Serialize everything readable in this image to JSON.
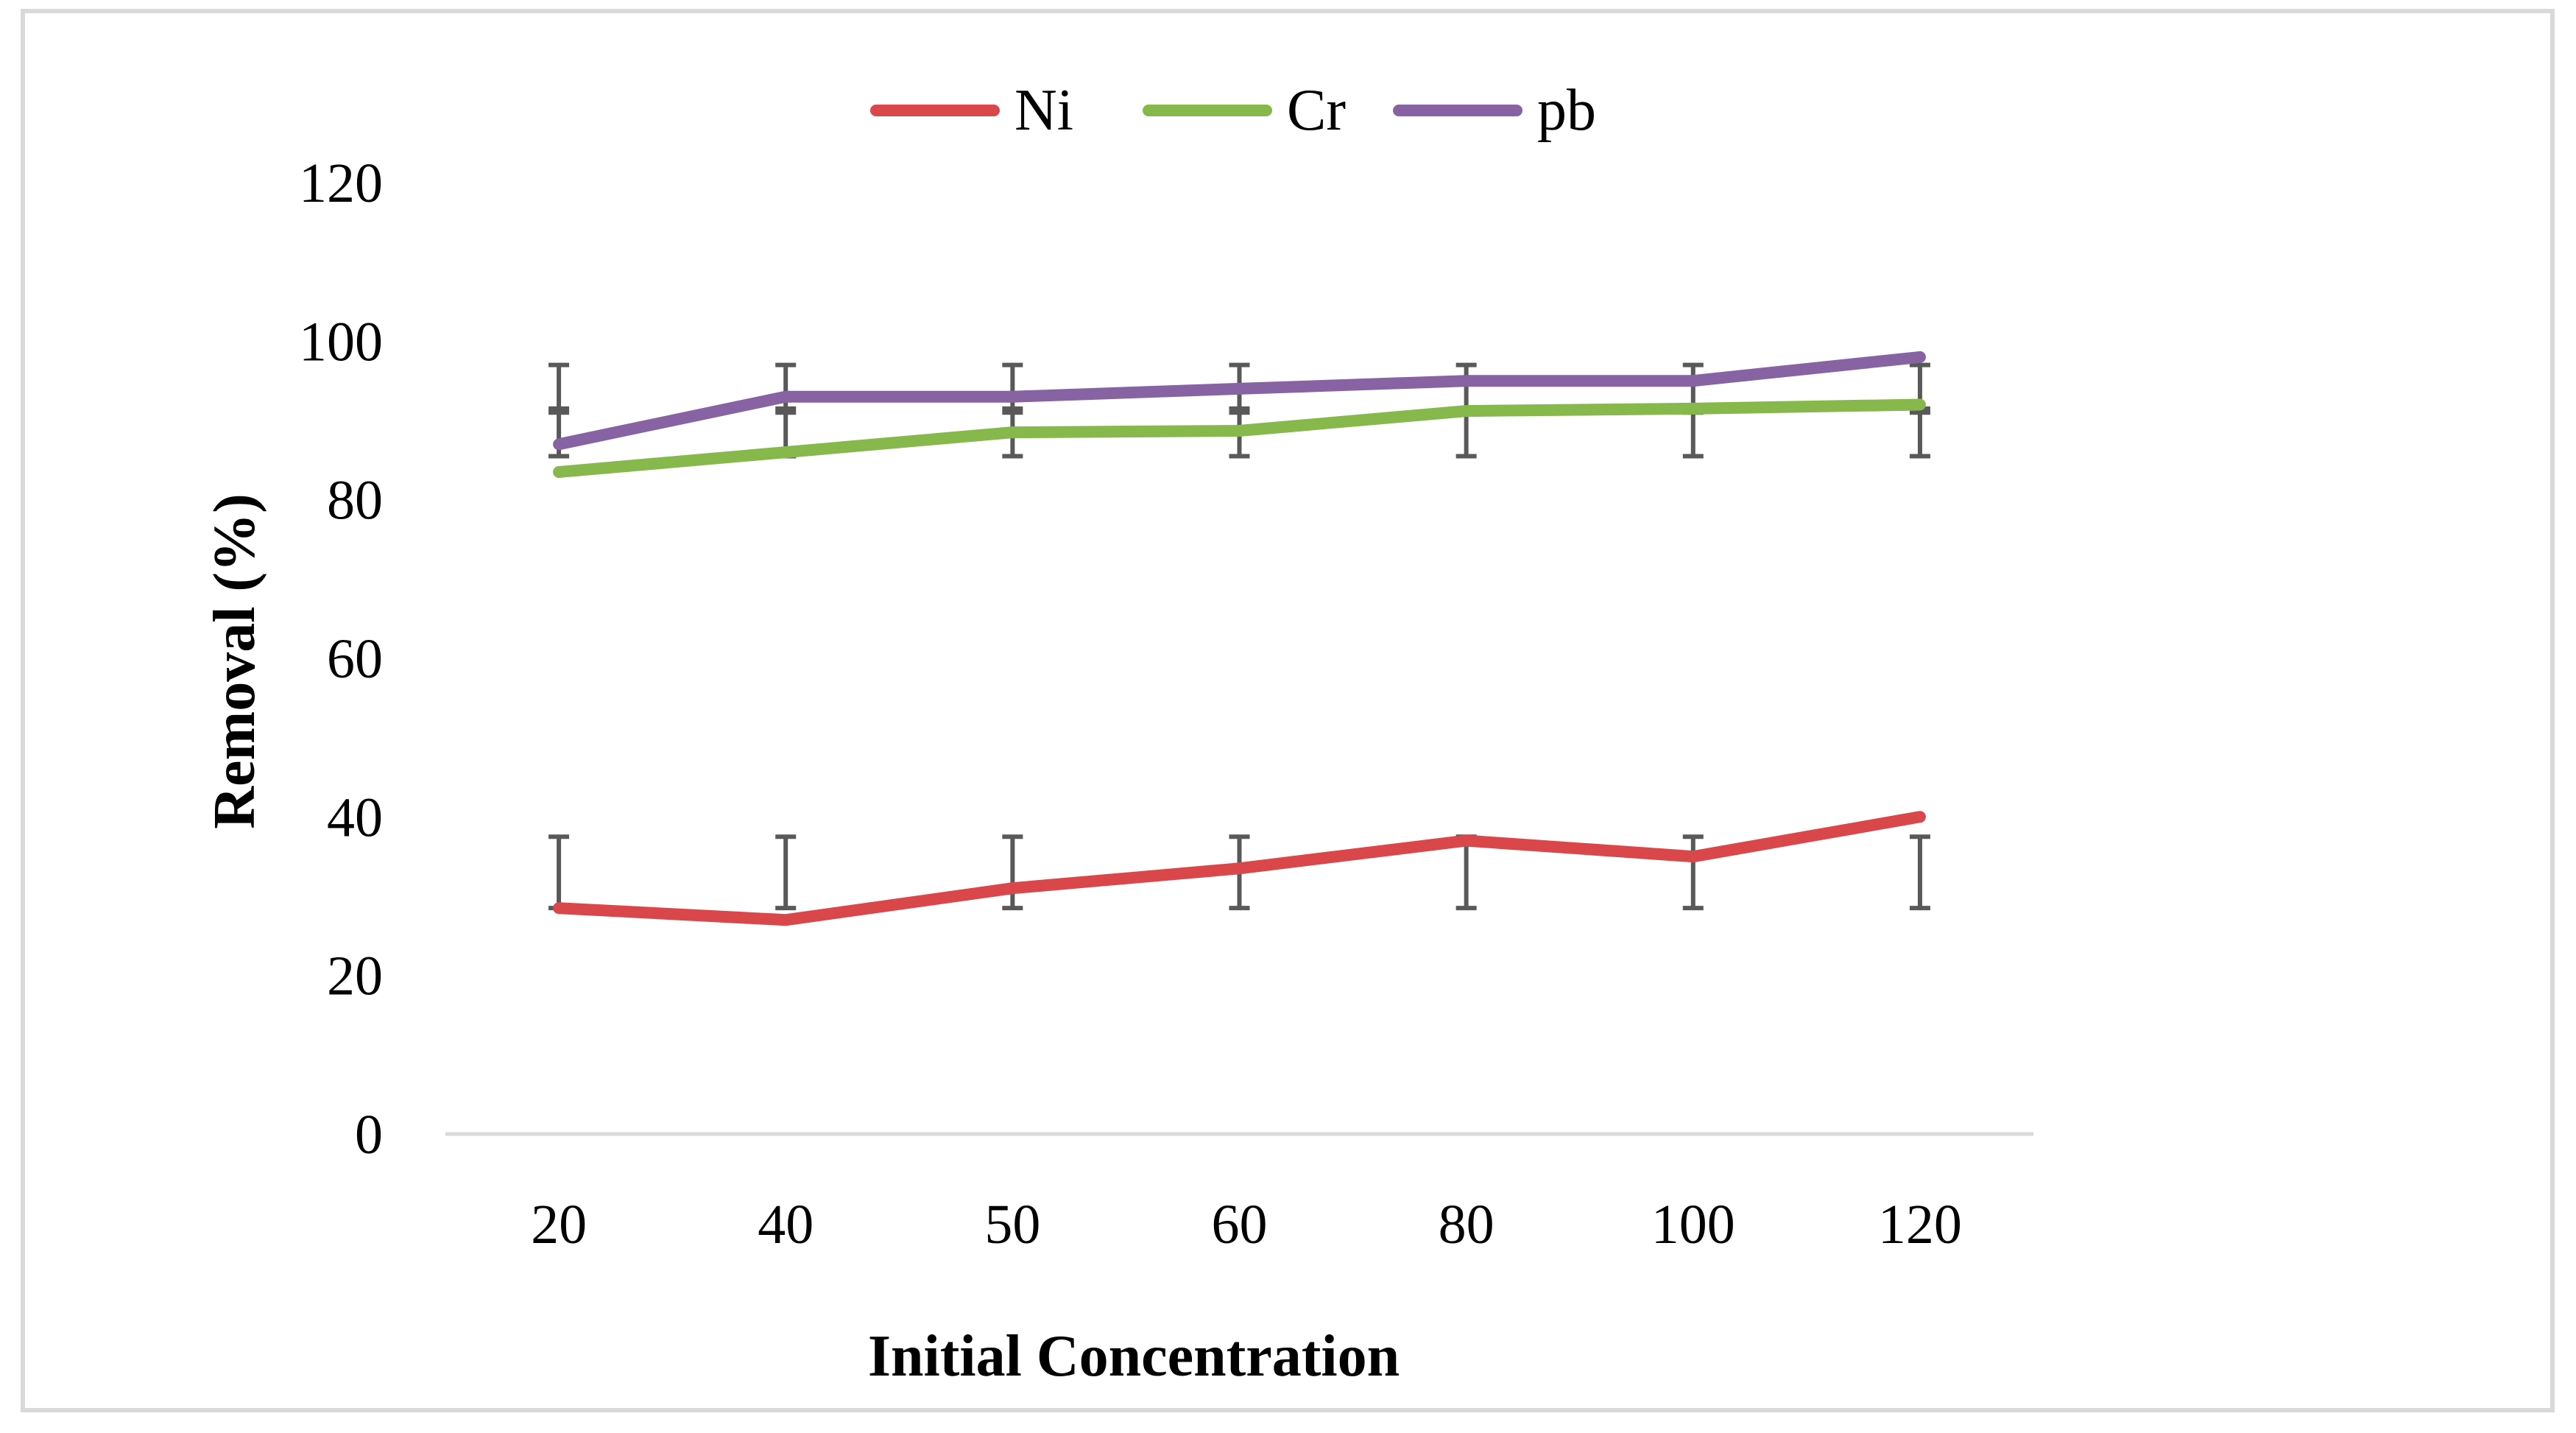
{
  "chart_data": {
    "type": "line",
    "title": "",
    "xlabel": "Initial Concentration",
    "ylabel": "Removal (%)",
    "categories": [
      "20",
      "40",
      "50",
      "60",
      "80",
      "100",
      "120"
    ],
    "ylim": [
      0,
      120
    ],
    "yticks": [
      0,
      20,
      40,
      60,
      80,
      100,
      120
    ],
    "grid": false,
    "legend_position": "top-center",
    "series": [
      {
        "name": "Ni",
        "color": "#d9474a",
        "values": [
          28.5,
          27,
          31,
          33.5,
          37,
          35,
          40
        ],
        "error_low": [
          28.5,
          28.5,
          28.5,
          28.5,
          28.5,
          28.5,
          28.5
        ],
        "error_high": [
          37.5,
          37.5,
          37.5,
          37.5,
          37.5,
          37.5,
          37.5
        ]
      },
      {
        "name": "Cr",
        "color": "#86b84b",
        "values": [
          83.5,
          86,
          88.5,
          88.7,
          91.2,
          91.5,
          92
        ],
        "error_low": [
          85.5,
          85.5,
          85.5,
          85.5,
          85.5,
          85.5,
          85.5
        ],
        "error_high": [
          91.5,
          91.5,
          91.5,
          91.5,
          91.5,
          91.5,
          91.5
        ]
      },
      {
        "name": "pb",
        "color": "#8763a4",
        "values": [
          87,
          93,
          93,
          94,
          95,
          95,
          98
        ],
        "error_low": [
          91,
          91,
          91,
          91,
          91,
          91,
          91
        ],
        "error_high": [
          97,
          97,
          97,
          97,
          97,
          97,
          97
        ]
      }
    ],
    "error_bar_color": "#595959"
  }
}
